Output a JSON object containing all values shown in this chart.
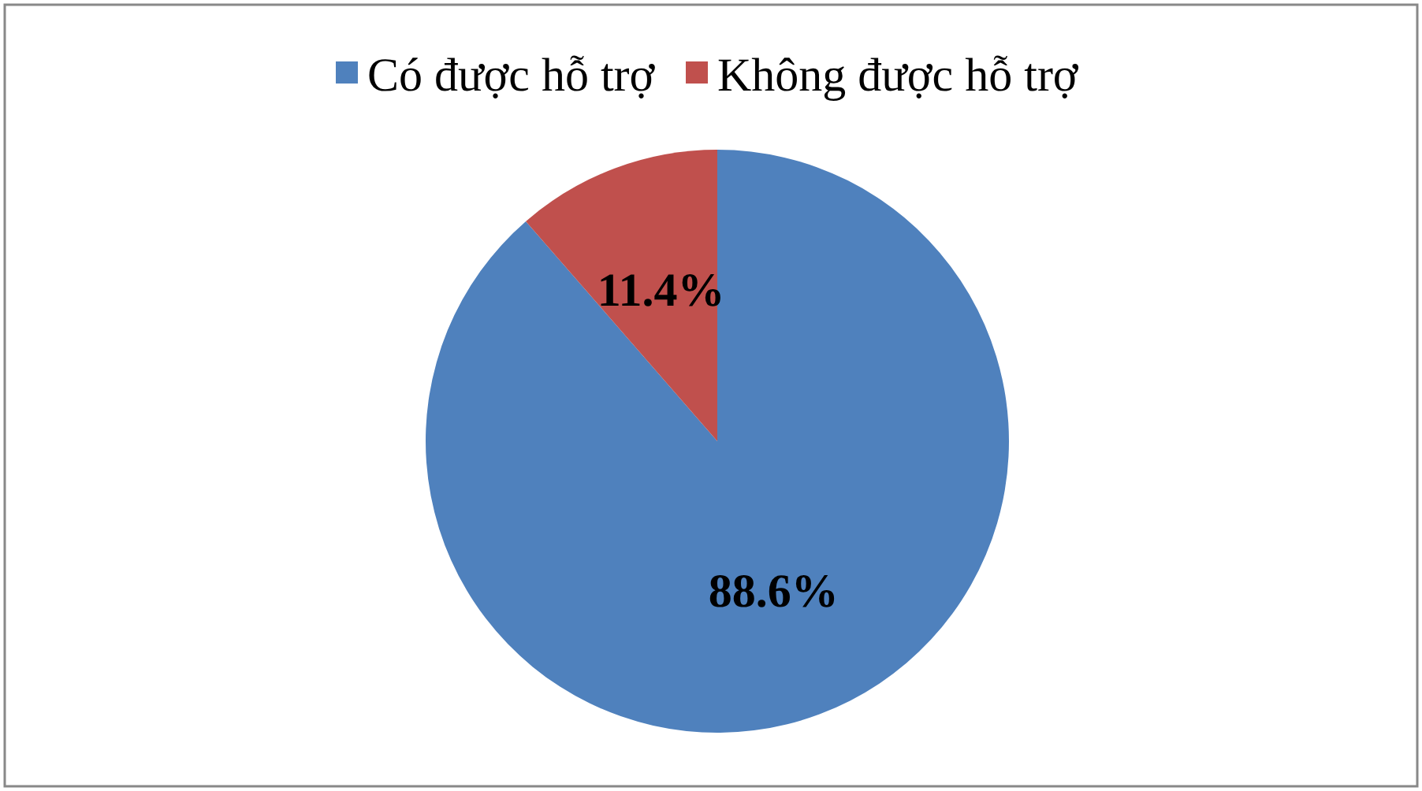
{
  "chart_data": {
    "type": "pie",
    "categories": [
      "Có được hỗ trợ",
      "Không  được hỗ trợ"
    ],
    "values": [
      88.6,
      11.4
    ],
    "colors": [
      "#4f81bd",
      "#c0504d"
    ],
    "value_labels": [
      "88.6%",
      "11.4%"
    ],
    "legend": "top"
  }
}
